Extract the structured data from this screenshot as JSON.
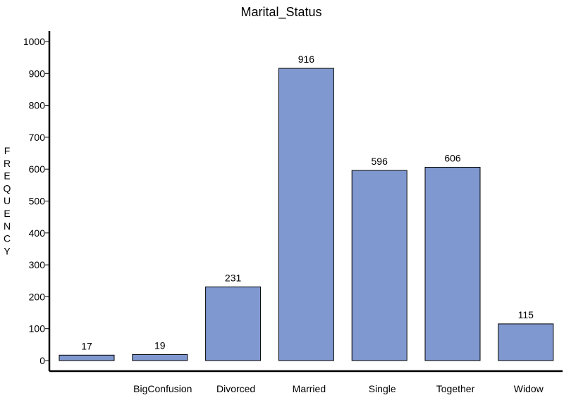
{
  "chart_data": {
    "type": "bar",
    "title": "Marital_Status",
    "xlabel": "",
    "ylabel": "FREQUENCY",
    "categories": [
      "",
      "BigConfusion",
      "Divorced",
      "Married",
      "Single",
      "Together",
      "Widow"
    ],
    "values": [
      17,
      19,
      231,
      916,
      596,
      606,
      115
    ],
    "ylim": [
      0,
      1000
    ],
    "yticks": [
      "0",
      "100",
      "200",
      "300",
      "400",
      "500",
      "600",
      "700",
      "800",
      "900",
      "1000"
    ],
    "grid": false,
    "bar_color": "#7f98cf",
    "bar_edge_color": "#000000"
  }
}
